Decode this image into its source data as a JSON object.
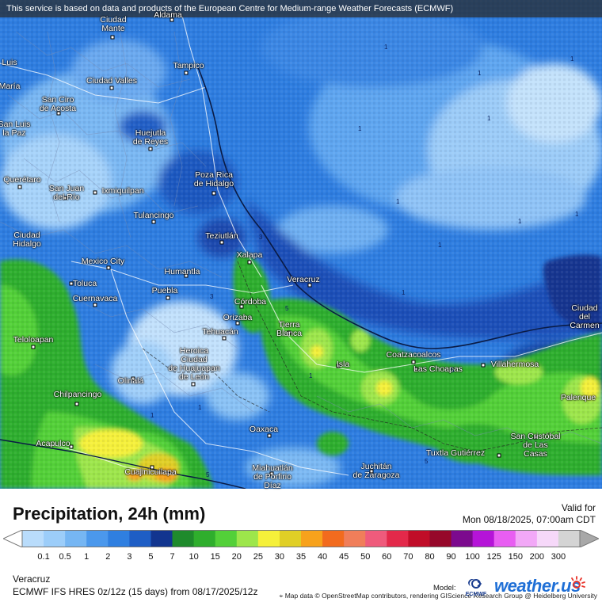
{
  "banner": "This service is based on data and products of the European Centre for Medium-range Weather Forecasts (ECMWF)",
  "attribution": "Map data © OpenStreetMap contributors, rendering GIScience Research Group @ Heidelberg University",
  "title": "Precipitation, 24h (mm)",
  "valid_label": "Valid for",
  "valid_value": "Mon 08/18/2025, 07:00am CDT",
  "region": "Veracruz",
  "model_line": "ECMWF IFS HRES 0z/12z (15 days) from 08/17/2025/12z",
  "model_label": "Model:",
  "ecmwf_text": "ECMWF",
  "brand_name": "weather.us",
  "icons": [
    "ecmwf-logo-icon",
    "weather-sun-icon",
    "map-marker-icon"
  ],
  "colors": {
    "ocean_base": "#2f7fe0",
    "land_light": "#9fd0f7",
    "heavy_green": "#3ab82e",
    "heavy_yellow": "#f5f03a",
    "brand": "#1f6fd6"
  },
  "legend": {
    "ticks": [
      "0.1",
      "0.5",
      "1",
      "2",
      "3",
      "5",
      "7",
      "10",
      "15",
      "20",
      "25",
      "30",
      "35",
      "40",
      "45",
      "50",
      "60",
      "70",
      "80",
      "90",
      "100",
      "125",
      "150",
      "200",
      "300"
    ],
    "colors": [
      "#b9dcfb",
      "#9ccdf9",
      "#76b6f3",
      "#4b98ec",
      "#2f7fe0",
      "#1e5ec5",
      "#12358f",
      "#1f8a2c",
      "#2fae2d",
      "#53d039",
      "#9de64b",
      "#f5f03a",
      "#e0cf26",
      "#f7a21c",
      "#f26b1e",
      "#f07e5a",
      "#ef5b7c",
      "#e3294a",
      "#c00d28",
      "#96082a",
      "#7c0a8e",
      "#b514d8",
      "#e85ef2",
      "#f2a8f7",
      "#f6d8f9",
      "#d4d4d4"
    ]
  },
  "cities": [
    {
      "name": "Ciudad\nMante"
    },
    {
      "name": "Aldama"
    },
    {
      "name": "Tampico"
    },
    {
      "name": "Luis"
    },
    {
      "name": "María"
    },
    {
      "name": "Ciudad Valles"
    },
    {
      "name": "San Ciro\nde Acosta"
    },
    {
      "name": "Huejutla\nde Reyes"
    },
    {
      "name": "San Luis\nla Paz"
    },
    {
      "name": "Poza Rica\nde Hidalgo"
    },
    {
      "name": "Querétaro"
    },
    {
      "name": "San Juan\ndel Río"
    },
    {
      "name": "Ixmiquilpan"
    },
    {
      "name": "Tulancingo"
    },
    {
      "name": "Teziutlán"
    },
    {
      "name": "Ciudad\nHidalgo"
    },
    {
      "name": "Xalapa"
    },
    {
      "name": "Mexico City"
    },
    {
      "name": "Humantla"
    },
    {
      "name": "Veracruz"
    },
    {
      "name": "Toluca"
    },
    {
      "name": "Puebla"
    },
    {
      "name": "Cuernavaca"
    },
    {
      "name": "Córdoba"
    },
    {
      "name": "Orizaba"
    },
    {
      "name": "Tierra\nBlanca"
    },
    {
      "name": "Tehuacán"
    },
    {
      "name": "Teloloapan"
    },
    {
      "name": "Heroica\nCiudad\nde Huajuapan\nde León"
    },
    {
      "name": "Coatzacoalcos"
    },
    {
      "name": "Isla"
    },
    {
      "name": "Las Choapas"
    },
    {
      "name": "Villahermosa"
    },
    {
      "name": "Ciudad\ndel\nCarmen"
    },
    {
      "name": "Olinalá"
    },
    {
      "name": "Chilpancingo"
    },
    {
      "name": "Palenque"
    },
    {
      "name": "Oaxaca"
    },
    {
      "name": "San Cristóbal\nde Las\nCasas"
    },
    {
      "name": "Acapulco"
    },
    {
      "name": "Tuxtla Gutiérrez"
    },
    {
      "name": "Cuajinicuilapa"
    },
    {
      "name": "Miahuatlán\nde Porfirio\nDíaz"
    },
    {
      "name": "Juchitán\nde Zaragoza"
    }
  ],
  "contour_labels": [
    "1",
    "1",
    "1",
    "1",
    "1",
    "1",
    "1",
    "1",
    "1",
    "1",
    "1",
    "1",
    "1",
    "3",
    "3",
    "5",
    "5",
    "5",
    "5"
  ]
}
